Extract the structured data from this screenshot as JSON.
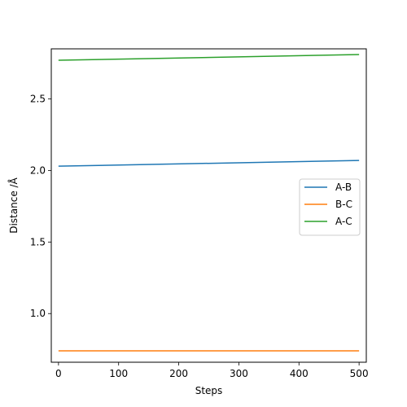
{
  "chart_data": {
    "type": "line",
    "xlabel": "Steps",
    "ylabel": "Distance /Å",
    "xlim": [
      -12,
      512
    ],
    "ylim": [
      0.66,
      2.85
    ],
    "xticks": [
      0,
      100,
      200,
      300,
      400,
      500
    ],
    "yticks": [
      1.0,
      1.5,
      2.0,
      2.5
    ],
    "ytick_labels": [
      "1.0",
      "1.5",
      "2.0",
      "2.5"
    ],
    "grid": false,
    "legend_position": "center-right",
    "series": [
      {
        "name": "A-B",
        "color": "#1f77b4",
        "x": [
          0,
          500
        ],
        "y": [
          2.03,
          2.07
        ]
      },
      {
        "name": "B-C",
        "color": "#ff7f0e",
        "x": [
          0,
          500
        ],
        "y": [
          0.74,
          0.74
        ]
      },
      {
        "name": "A-C",
        "color": "#2ca02c",
        "x": [
          0,
          500
        ],
        "y": [
          2.77,
          2.81
        ]
      }
    ]
  }
}
